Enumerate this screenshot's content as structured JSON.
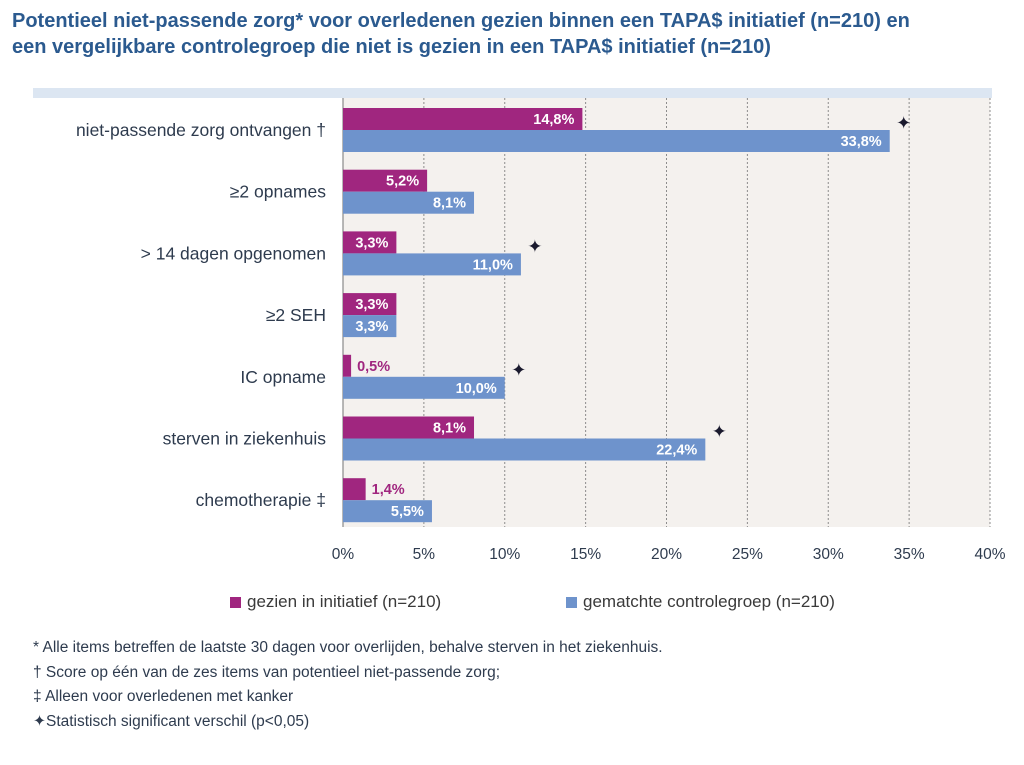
{
  "title_line1": "Potentieel niet-passende zorg* voor overledenen gezien binnen een TAPA$ initiatief (n=210) en",
  "title_line2": "een vergelijkbare controlegroep die niet is gezien in een TAPA$ initiatief (n=210)",
  "chart_data": {
    "type": "bar",
    "orientation": "horizontal",
    "categories": [
      "niet-passende zorg ontvangen †",
      "≥2 opnames",
      "> 14 dagen opgenomen",
      "≥2 SEH",
      "IC opname",
      "sterven in ziekenhuis",
      "chemotherapie ‡"
    ],
    "series": [
      {
        "name": "gezien in initiatief (n=210)",
        "color": "#a0267f",
        "values": [
          14.8,
          5.2,
          3.3,
          3.3,
          0.5,
          8.1,
          1.4
        ],
        "labels": [
          "14,8%",
          "5,2%",
          "3,3%",
          "3,3%",
          "0,5%",
          "8,1%",
          "1,4%"
        ]
      },
      {
        "name": "gematchte controlegroep (n=210)",
        "color": "#6e93cc",
        "values": [
          33.8,
          8.1,
          11.0,
          3.3,
          10.0,
          22.4,
          5.5
        ],
        "labels": [
          "33,8%",
          "8,1%",
          "11,0%",
          "3,3%",
          "10,0%",
          "22,4%",
          "5,5%"
        ]
      }
    ],
    "significant": [
      true,
      false,
      true,
      false,
      true,
      true,
      false
    ],
    "significance_marker": "✦",
    "xlim": [
      0,
      40
    ],
    "xticks": [
      0,
      5,
      10,
      15,
      20,
      25,
      30,
      35,
      40
    ],
    "xtick_labels": [
      "0%",
      "5%",
      "10%",
      "15%",
      "20%",
      "25%",
      "30%",
      "35%",
      "40%"
    ],
    "grid": true,
    "legend_position": "bottom"
  },
  "notes": [
    "* Alle items betreffen de laatste 30 dagen voor overlijden, behalve sterven in het ziekenhuis.",
    "† Score op één van de zes items van potentieel niet-passende zorg;",
    "‡ Alleen voor overledenen met kanker",
    "✦Statistisch significant verschil (p<0,05)"
  ]
}
